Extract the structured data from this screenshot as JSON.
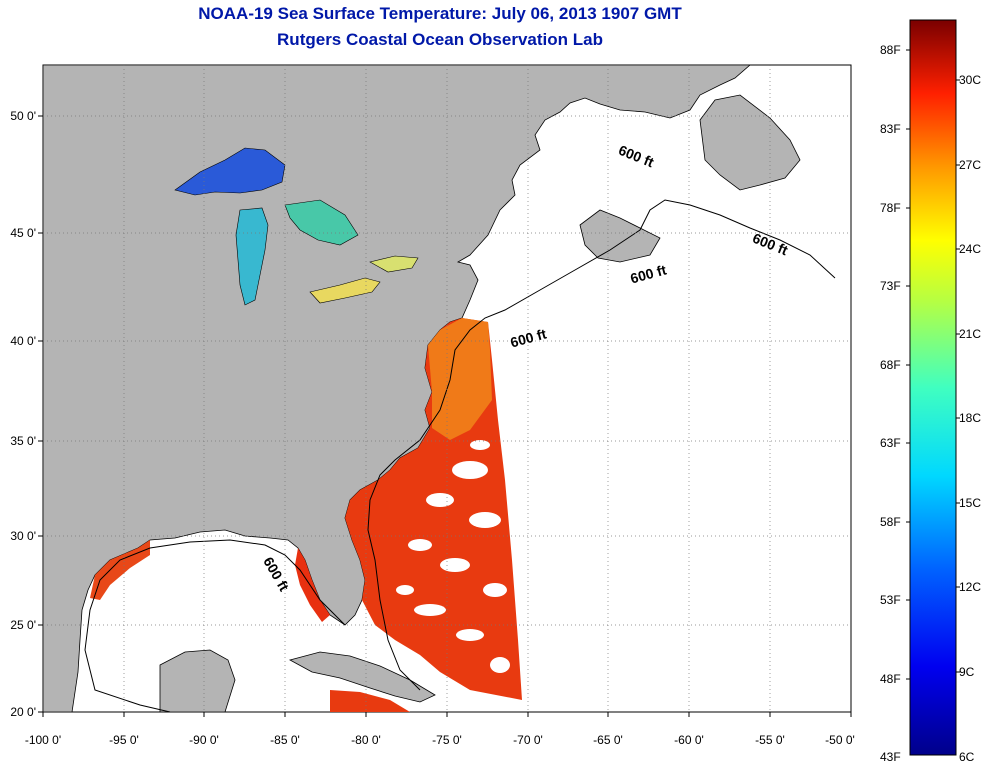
{
  "title_line1": "NOAA-19 Sea Surface Temperature:  July 06, 2013 1907 GMT",
  "title_line2": "Rutgers Coastal Ocean Observation Lab",
  "lat_labels": [
    "50 0'",
    "45 0'",
    "40 0'",
    "35 0'",
    "30 0'",
    "25 0'",
    "20 0'"
  ],
  "lon_labels": [
    "-100 0'",
    "-95 0'",
    "-90 0'",
    "-85 0'",
    "-80 0'",
    "-75 0'",
    "-70 0'",
    "-65 0'",
    "-60 0'",
    "-55 0'",
    "-50 0'"
  ],
  "contour_label": "600 ft",
  "colorbar": {
    "fahrenheit": [
      "88F",
      "83F",
      "78F",
      "73F",
      "68F",
      "63F",
      "58F",
      "53F",
      "48F",
      "43F"
    ],
    "celsius": [
      "30C",
      "27C",
      "24C",
      "21C",
      "18C",
      "15C",
      "12C",
      "9C",
      "6C"
    ]
  },
  "colors": {
    "title": "#0018a8",
    "land": "#b4b4b4",
    "water_nodata": "#ffffff",
    "sst_warm": "#e83a10",
    "sst_orange": "#f07a18",
    "lake_cold": "#1a3ec8"
  }
}
